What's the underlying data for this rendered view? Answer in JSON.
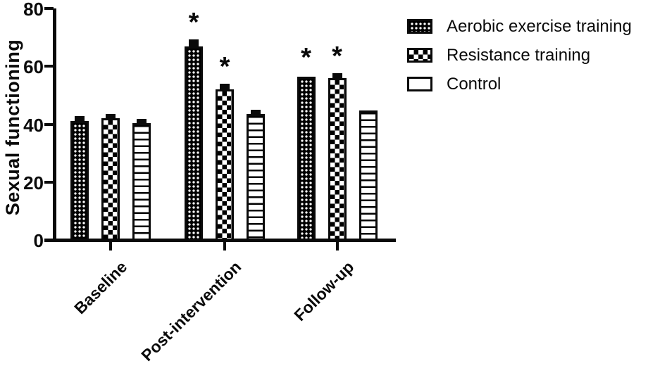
{
  "figure": {
    "background_color": "#ffffff",
    "ink_color": "#0a0a0a"
  },
  "chart_data": {
    "type": "bar",
    "title": "",
    "xlabel": "",
    "ylabel": "Sexual functioning",
    "ylim": [
      0,
      80
    ],
    "yticks": [
      0,
      20,
      40,
      60,
      80
    ],
    "ytick_labels": [
      "0",
      "20",
      "40",
      "60",
      "80"
    ],
    "grid": false,
    "legend_position": "right-outside",
    "sig_marker": "*",
    "categories": [
      "Baseline",
      "Post-intervention",
      "Follow-up"
    ],
    "series": [
      {
        "name": "Aerobic exercise training",
        "pattern": "fine-checker",
        "values": [
          41,
          67,
          56.5
        ],
        "sem": [
          1.0,
          1.5,
          0
        ],
        "significant": [
          false,
          true,
          true
        ]
      },
      {
        "name": "Resistance training",
        "pattern": "coarse-checker",
        "values": [
          42,
          52,
          56
        ],
        "sem": [
          0.9,
          1.3,
          0.9
        ],
        "significant": [
          false,
          true,
          true
        ]
      },
      {
        "name": "Control",
        "pattern": "horizontal-lines",
        "values": [
          40.3,
          43.5,
          44.8
        ],
        "sem": [
          0.7,
          0.8,
          0
        ],
        "significant": [
          false,
          false,
          false
        ]
      }
    ]
  }
}
